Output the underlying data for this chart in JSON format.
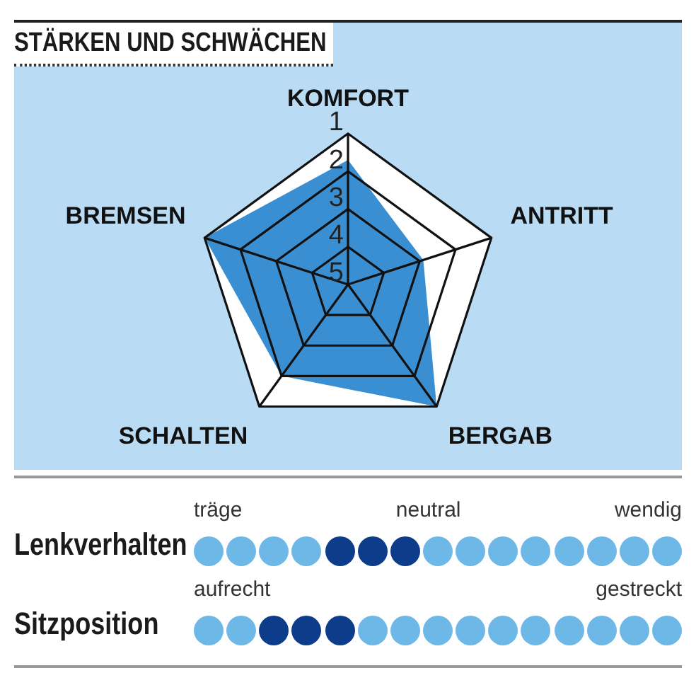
{
  "chart_data": [
    {
      "type": "radar",
      "title": "STÄRKEN UND SCHWÄCHEN",
      "categories": [
        "KOMFORT",
        "ANTRITT",
        "BERGAB",
        "SCHALTEN",
        "BREMSEN"
      ],
      "series": [
        {
          "color": "#3a8fd3",
          "values": [
            1.7,
            2.9,
            1,
            2,
            1
          ]
        }
      ],
      "ylim": [
        5,
        1
      ],
      "yticks": [
        5,
        4,
        3,
        2,
        1
      ],
      "grid": true,
      "legend": false
    },
    {
      "type": "other",
      "title": "Lenkverhalten",
      "annotations": [
        "träge",
        "neutral",
        "wendig"
      ],
      "categories": [
        null,
        null,
        null,
        null,
        null,
        null,
        null,
        null,
        null,
        null,
        null,
        null,
        null,
        null,
        null
      ],
      "colors": [
        "#6db8e6",
        "#6db8e6",
        "#6db8e6",
        "#6db8e6",
        "#0d3d8a",
        "#0d3d8a",
        "#0d3d8a",
        "#6db8e6",
        "#6db8e6",
        "#6db8e6",
        "#6db8e6",
        "#6db8e6",
        "#6db8e6",
        "#6db8e6",
        "#6db8e6"
      ]
    },
    {
      "type": "other",
      "title": "Sitzposition",
      "annotations": [
        "aufrecht",
        "gestreckt"
      ],
      "categories": [
        null,
        null,
        null,
        null,
        null,
        null,
        null,
        null,
        null,
        null,
        null,
        null,
        null,
        null,
        null
      ],
      "colors": [
        "#6db8e6",
        "#6db8e6",
        "#0d3d8a",
        "#0d3d8a",
        "#0d3d8a",
        "#6db8e6",
        "#6db8e6",
        "#6db8e6",
        "#6db8e6",
        "#6db8e6",
        "#6db8e6",
        "#6db8e6",
        "#6db8e6",
        "#6db8e6",
        "#6db8e6"
      ]
    }
  ]
}
